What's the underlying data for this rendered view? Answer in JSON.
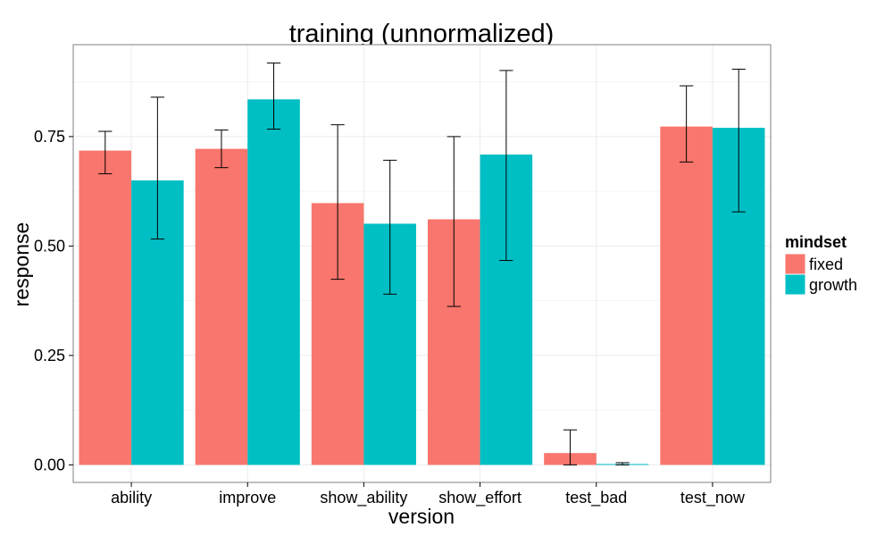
{
  "chart_data": {
    "type": "bar",
    "title": "training  (unnormalized)",
    "xlabel": "version",
    "ylabel": "response",
    "categories": [
      "ability",
      "improve",
      "show_ability",
      "show_effort",
      "test_bad",
      "test_now"
    ],
    "series": [
      {
        "name": "fixed",
        "color": "#F8766D",
        "values": [
          0.718,
          0.722,
          0.598,
          0.561,
          0.027,
          0.773
        ],
        "error_low": [
          0.665,
          0.679,
          0.424,
          0.362,
          0.0,
          0.692
        ],
        "error_high": [
          0.762,
          0.765,
          0.777,
          0.75,
          0.08,
          0.866
        ]
      },
      {
        "name": "growth",
        "color": "#00BFC4",
        "values": [
          0.65,
          0.835,
          0.551,
          0.709,
          0.002,
          0.77
        ],
        "error_low": [
          0.516,
          0.767,
          0.39,
          0.467,
          0.0,
          0.578
        ],
        "error_high": [
          0.84,
          0.918,
          0.696,
          0.901,
          0.005,
          0.904
        ]
      }
    ],
    "ylim": [
      -0.04,
      0.96
    ],
    "yticks": [
      0.0,
      0.25,
      0.5,
      0.75
    ],
    "ytick_labels": [
      "0.00",
      "0.25",
      "0.50",
      "0.75"
    ],
    "grid": true,
    "legend": {
      "title": "mindset",
      "position": "right"
    }
  }
}
